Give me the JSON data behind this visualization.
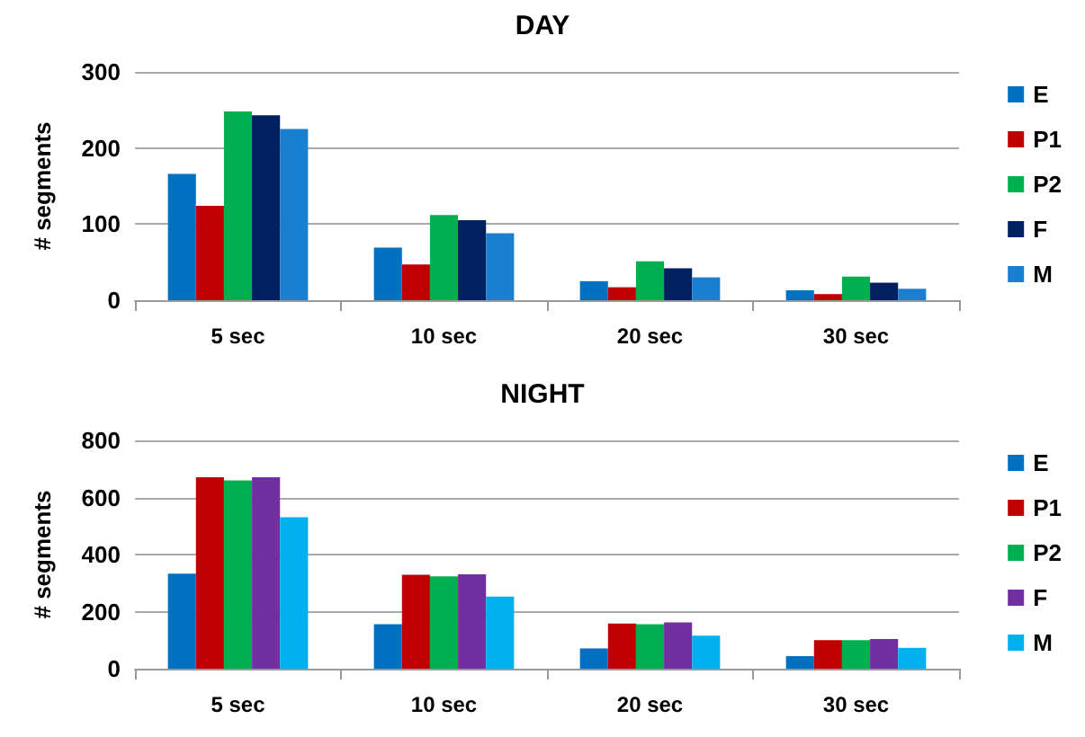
{
  "chart_data": [
    {
      "type": "bar",
      "title": "DAY",
      "ylabel": "# segments",
      "categories": [
        "5 sec",
        "10 sec",
        "20 sec",
        "30 sec"
      ],
      "ylim": [
        0,
        300
      ],
      "yticks": [
        0,
        100,
        200,
        300
      ],
      "grid": "y",
      "legend": "right",
      "series": [
        {
          "name": "E",
          "color": "#0070c0",
          "values": [
            166,
            69,
            25,
            13
          ]
        },
        {
          "name": "P1",
          "color": "#c00000",
          "values": [
            124,
            47,
            17,
            8
          ]
        },
        {
          "name": "P2",
          "color": "#00b050",
          "values": [
            248,
            112,
            51,
            31
          ]
        },
        {
          "name": "F",
          "color": "#002060",
          "values": [
            243,
            105,
            42,
            23
          ]
        },
        {
          "name": "M",
          "color": "#1a7fd0",
          "values": [
            225,
            88,
            30,
            15
          ]
        }
      ]
    },
    {
      "type": "bar",
      "title": "NIGHT",
      "ylabel": "# segments",
      "categories": [
        "5 sec",
        "10 sec",
        "20 sec",
        "30 sec"
      ],
      "ylim": [
        0,
        800
      ],
      "yticks": [
        0,
        200,
        400,
        600,
        800
      ],
      "grid": "y",
      "legend": "right",
      "series": [
        {
          "name": "E",
          "color": "#0070c0",
          "values": [
            333,
            156,
            71,
            44
          ]
        },
        {
          "name": "P1",
          "color": "#c00000",
          "values": [
            671,
            329,
            158,
            100
          ]
        },
        {
          "name": "P2",
          "color": "#00b050",
          "values": [
            660,
            324,
            156,
            100
          ]
        },
        {
          "name": "F",
          "color": "#7030a0",
          "values": [
            671,
            331,
            162,
            104
          ]
        },
        {
          "name": "M",
          "color": "#00b0f0",
          "values": [
            531,
            253,
            116,
            73
          ]
        }
      ]
    }
  ]
}
